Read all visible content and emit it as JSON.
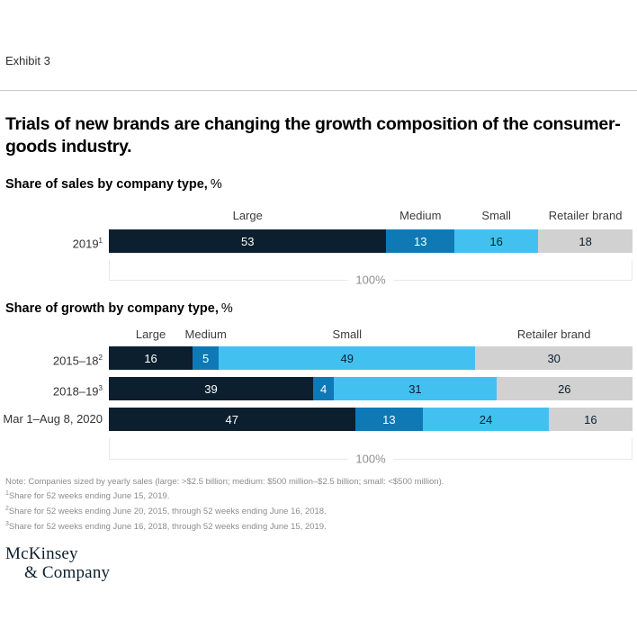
{
  "exhibit_label": "Exhibit 3",
  "title_lines": [
    "Trials of new brands are changing the growth composition of the consumer-",
    "goods industry."
  ],
  "colors": {
    "segment_colors": [
      "#0b1f2e",
      "#0f79b6",
      "#42c1f1",
      "#d1d1d1"
    ],
    "value_text_colors": [
      "#ffffff",
      "#ffffff",
      "#0b1f2e",
      "#0b1f2e"
    ],
    "divider": "#c9c9c9",
    "bracket_border": "#e8e8e8",
    "footnote_text": "#8c8c8c",
    "logo_navy": "#0b1f2e"
  },
  "charts": [
    {
      "heading_bold": "Share of sales by company type,",
      "heading_suffix": "%",
      "column_headers": [
        "Large",
        "Medium",
        "Small",
        "Retailer brand"
      ],
      "rows": [
        {
          "label": "2019",
          "sup": "1",
          "values": [
            53,
            13,
            16,
            18
          ]
        }
      ],
      "total_label": "100%"
    },
    {
      "heading_bold": "Share of growth by company type,",
      "heading_suffix": "%",
      "column_headers": [
        "Large",
        "Medium",
        "Small",
        "Retailer brand"
      ],
      "rows": [
        {
          "label": "2015–18",
          "sup": "2",
          "values": [
            16,
            5,
            49,
            30
          ]
        },
        {
          "label": "2018–19",
          "sup": "3",
          "values": [
            39,
            4,
            31,
            26
          ]
        },
        {
          "label": "Mar 1–Aug 8, 2020",
          "sup": "",
          "values": [
            47,
            13,
            24,
            16
          ]
        }
      ],
      "total_label": "100%"
    }
  ],
  "chart_data": [
    {
      "type": "bar",
      "stacked": true,
      "orientation": "horizontal",
      "title": "Share of sales by company type, %",
      "categories": [
        "2019¹"
      ],
      "series": [
        {
          "name": "Large",
          "values": [
            53
          ]
        },
        {
          "name": "Medium",
          "values": [
            13
          ]
        },
        {
          "name": "Small",
          "values": [
            16
          ]
        },
        {
          "name": "Retailer brand",
          "values": [
            18
          ]
        }
      ],
      "xlim": [
        0,
        100
      ],
      "total_annotation": "100%",
      "legend_position": "above-segments",
      "grid": false
    },
    {
      "type": "bar",
      "stacked": true,
      "orientation": "horizontal",
      "title": "Share of growth by company type, %",
      "categories": [
        "2015–18²",
        "2018–19³",
        "Mar 1–Aug 8, 2020"
      ],
      "series": [
        {
          "name": "Large",
          "values": [
            16,
            39,
            47
          ]
        },
        {
          "name": "Medium",
          "values": [
            5,
            4,
            13
          ]
        },
        {
          "name": "Small",
          "values": [
            49,
            31,
            24
          ]
        },
        {
          "name": "Retailer brand",
          "values": [
            30,
            26,
            16
          ]
        }
      ],
      "xlim": [
        0,
        100
      ],
      "total_annotation": "100%",
      "legend_position": "above-segments",
      "grid": false
    }
  ],
  "footnotes": [
    {
      "sup": "",
      "text": "Note: Companies sized by yearly sales (large: >$2.5 billion; medium: $500 million–$2.5 billion; small: <$500 million)."
    },
    {
      "sup": "1",
      "text": "Share for 52 weeks ending June 15, 2019."
    },
    {
      "sup": "2",
      "text": "Share for 52 weeks ending June 20, 2015, through 52 weeks ending June 16, 2018."
    },
    {
      "sup": "3",
      "text": "Share for 52 weeks ending June 16, 2018, through 52 weeks ending June 15, 2019."
    }
  ],
  "logo_lines": [
    "McKinsey",
    "& Company"
  ]
}
